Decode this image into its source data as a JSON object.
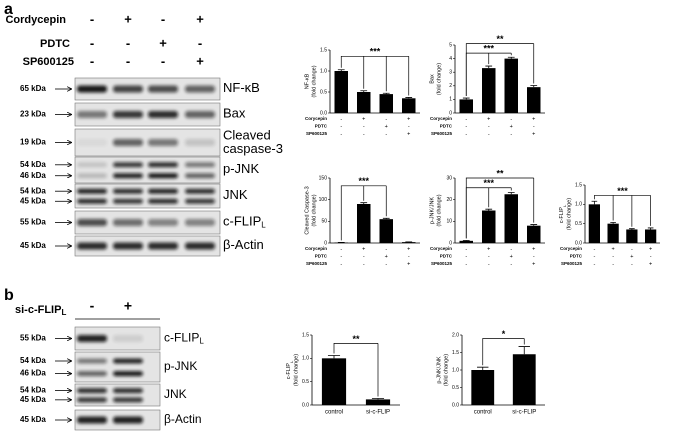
{
  "figure": {
    "panel_a": {
      "label": "a",
      "treatments": [
        {
          "name": "Cordycepin",
          "signs": [
            "-",
            "+",
            "-",
            "+"
          ]
        },
        {
          "name": "PDTC",
          "signs": [
            "-",
            "-",
            "+",
            "-"
          ]
        },
        {
          "name": "SP600125",
          "signs": [
            "-",
            "-",
            "-",
            "+"
          ]
        }
      ],
      "blots": [
        {
          "markers": [
            "65 kDa"
          ],
          "protein": [
            "NF-κB"
          ]
        },
        {
          "markers": [
            "23 kDa"
          ],
          "protein": [
            "Bax"
          ]
        },
        {
          "markers": [
            "19 kDa"
          ],
          "protein": [
            "Cleaved",
            "caspase-3"
          ]
        },
        {
          "markers": [
            "54 kDa",
            "46 kDa"
          ],
          "protein": [
            "p-JNK"
          ]
        },
        {
          "markers": [
            "54 kDa",
            "45 kDa"
          ],
          "protein": [
            "JNK"
          ]
        },
        {
          "markers": [
            "55 kDa"
          ],
          "protein": [
            "c-FLIP"
          ],
          "sub": "L"
        },
        {
          "markers": [
            "45 kDa"
          ],
          "protein": [
            "β-Actin"
          ]
        }
      ]
    },
    "panel_b": {
      "label": "b",
      "treatment": {
        "name": "si-c-FLIP",
        "sub": "L",
        "signs": [
          "-",
          "+"
        ]
      },
      "blots": [
        {
          "markers": [
            "55 kDa"
          ],
          "protein": [
            "c-FLIP"
          ],
          "sub": "L"
        },
        {
          "markers": [
            "54 kDa",
            "46 kDa"
          ],
          "protein": [
            "p-JNK"
          ]
        },
        {
          "markers": [
            "54 kDa",
            "45 kDa"
          ],
          "protein": [
            "JNK"
          ]
        },
        {
          "markers": [
            "45 kDa"
          ],
          "protein": [
            "β-Actin"
          ]
        }
      ]
    }
  },
  "chart_data": [
    {
      "type": "bar",
      "ylabel": [
        "NF-κB",
        "(fold change)"
      ],
      "values": [
        1.0,
        0.5,
        0.45,
        0.35
      ],
      "errors": [
        0.03,
        0.03,
        0.02,
        0.02
      ],
      "ylim": [
        0,
        1.5
      ],
      "yticks": [
        {
          "value": 0,
          "label": "0.0"
        },
        {
          "value": 0.5,
          "label": "0.5"
        },
        {
          "value": 1,
          "label": "1.0"
        },
        {
          "value": 1.5,
          "label": "1.5"
        }
      ],
      "annotations": [
        "***"
      ],
      "color": "#000000",
      "conditions": [
        {
          "name": "Corycepin",
          "signs": [
            "-",
            "+",
            "-",
            "+"
          ]
        },
        {
          "name": "PDTC",
          "signs": [
            "-",
            "-",
            "+",
            "-"
          ]
        },
        {
          "name": "SP600125",
          "signs": [
            "-",
            "-",
            "-",
            "+"
          ]
        }
      ]
    },
    {
      "type": "bar",
      "ylabel": [
        "Bax",
        "(fold change)"
      ],
      "values": [
        1.0,
        3.3,
        4.0,
        1.9
      ],
      "errors": [
        0.1,
        0.15,
        0.1,
        0.12
      ],
      "ylim": [
        0,
        5
      ],
      "yticks": [
        0,
        1,
        2,
        3,
        4,
        5
      ],
      "annotations": [
        "***",
        "**"
      ],
      "color": "#000000",
      "conditions": [
        {
          "name": "Corycepin",
          "signs": [
            "-",
            "+",
            "-",
            "+"
          ]
        },
        {
          "name": "PDTC",
          "signs": [
            "-",
            "-",
            "+",
            "-"
          ]
        },
        {
          "name": "SP600125",
          "signs": [
            "-",
            "-",
            "-",
            "+"
          ]
        }
      ]
    },
    {
      "type": "bar",
      "ylabel": [
        "Cleaved Caspase-3",
        "(fold change)"
      ],
      "values": [
        1,
        90,
        55,
        2
      ],
      "errors": [
        0.3,
        3,
        2,
        0.5
      ],
      "ylim": [
        0,
        150
      ],
      "yticks": [
        0,
        50,
        100,
        150
      ],
      "annotations": [
        "***"
      ],
      "color": "#000000",
      "conditions": [
        {
          "name": "Corycepin",
          "signs": [
            "-",
            "+",
            "-",
            "+"
          ]
        },
        {
          "name": "PDTC",
          "signs": [
            "-",
            "-",
            "+",
            "-"
          ]
        },
        {
          "name": "SP600125",
          "signs": [
            "-",
            "-",
            "-",
            "+"
          ]
        }
      ]
    },
    {
      "type": "bar",
      "ylabel": [
        "p-JNK/JNK",
        "(fold change)"
      ],
      "values": [
        1,
        15,
        22.5,
        8
      ],
      "errors": [
        0.2,
        0.6,
        0.8,
        0.5
      ],
      "ylim": [
        0,
        30
      ],
      "yticks": [
        0,
        10,
        20,
        30
      ],
      "annotations": [
        "***",
        "**"
      ],
      "color": "#000000",
      "conditions": [
        {
          "name": "Corycepin",
          "signs": [
            "-",
            "+",
            "-",
            "+"
          ]
        },
        {
          "name": "PDTC",
          "signs": [
            "-",
            "-",
            "+",
            "-"
          ]
        },
        {
          "name": "SP600125",
          "signs": [
            "-",
            "-",
            "-",
            "+"
          ]
        }
      ]
    },
    {
      "type": "bar",
      "ylabel": [
        {
          "text": "c-FLIP",
          "sub": "L"
        },
        "(fold change)"
      ],
      "values": [
        1.0,
        0.5,
        0.35,
        0.35
      ],
      "errors": [
        0.08,
        0.03,
        0.02,
        0.04
      ],
      "ylim": [
        0,
        1.5
      ],
      "yticks": [
        {
          "value": 0,
          "label": "0.0"
        },
        {
          "value": 0.5,
          "label": "0.5"
        },
        {
          "value": 1,
          "label": "1.0"
        },
        {
          "value": 1.5,
          "label": "1.5"
        }
      ],
      "annotations": [
        "***"
      ],
      "color": "#000000",
      "conditions": [
        {
          "name": "Corycepin",
          "signs": [
            "-",
            "+",
            "-",
            "+"
          ]
        },
        {
          "name": "PDTC",
          "signs": [
            "-",
            "-",
            "+",
            "-"
          ]
        },
        {
          "name": "SP600125",
          "signs": [
            "-",
            "-",
            "-",
            "+"
          ]
        }
      ]
    },
    {
      "type": "bar",
      "ylabel": [
        {
          "text": "c-FLIP",
          "sub": "L"
        },
        "(fold change)"
      ],
      "categories": [
        "control",
        "si-c-FLIP"
      ],
      "values": [
        1.0,
        0.12
      ],
      "errors": [
        0.06,
        0.02
      ],
      "ylim": [
        0,
        1.5
      ],
      "yticks": [
        {
          "value": 0,
          "label": "0.0"
        },
        {
          "value": 0.5,
          "label": "0.5"
        },
        {
          "value": 1,
          "label": "1.0"
        },
        {
          "value": 1.5,
          "label": "1.5"
        }
      ],
      "annotations": [
        "**"
      ],
      "color": "#000000"
    },
    {
      "type": "bar",
      "ylabel": [
        "p-JNK/JNK",
        "(fold change)"
      ],
      "categories": [
        "control",
        "si-c-FLIP"
      ],
      "values": [
        1.0,
        1.45
      ],
      "errors": [
        0.08,
        0.22
      ],
      "ylim": [
        0,
        2
      ],
      "yticks": [
        {
          "value": 0,
          "label": "0.0"
        },
        {
          "value": 0.5,
          "label": "0.5"
        },
        {
          "value": 1,
          "label": "1.0"
        },
        {
          "value": 1.5,
          "label": "1.5"
        },
        {
          "value": 2,
          "label": "2.0"
        }
      ],
      "annotations": [
        "*"
      ],
      "color": "#000000"
    }
  ]
}
